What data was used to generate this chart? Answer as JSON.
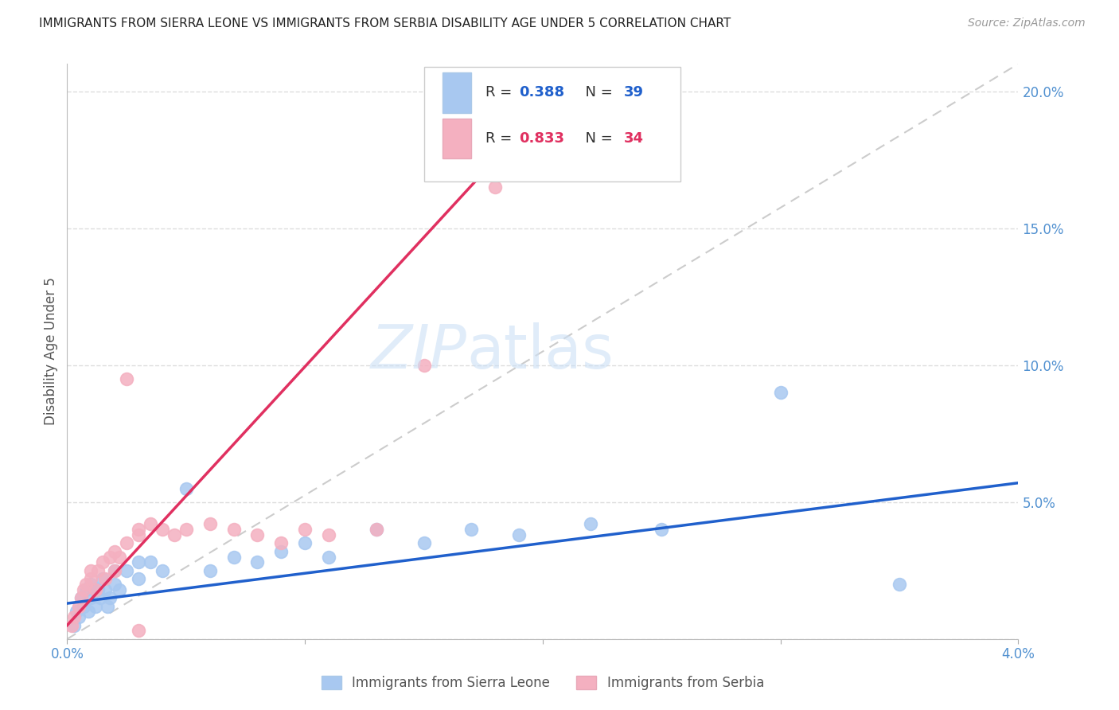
{
  "title": "IMMIGRANTS FROM SIERRA LEONE VS IMMIGRANTS FROM SERBIA DISABILITY AGE UNDER 5 CORRELATION CHART",
  "source": "Source: ZipAtlas.com",
  "ylabel": "Disability Age Under 5",
  "series1_label": "Immigrants from Sierra Leone",
  "series2_label": "Immigrants from Serbia",
  "series1_color": "#a8c8f0",
  "series2_color": "#f4b0c0",
  "trend1_color": "#2060cc",
  "trend2_color": "#e03060",
  "diag_color": "#cccccc",
  "R1": 0.388,
  "N1": 39,
  "R2": 0.833,
  "N2": 34,
  "xmin": 0.0,
  "xmax": 0.04,
  "ymin": 0.0,
  "ymax": 0.21,
  "yticks": [
    0.0,
    0.05,
    0.1,
    0.15,
    0.2
  ],
  "ytick_labels": [
    "",
    "5.0%",
    "10.0%",
    "15.0%",
    "20.0%"
  ],
  "xticks": [
    0.0,
    0.01,
    0.02,
    0.03,
    0.04
  ],
  "xtick_labels": [
    "0.0%",
    "",
    "",
    "",
    "4.0%"
  ],
  "series1_x": [
    0.0003,
    0.0004,
    0.0005,
    0.0006,
    0.0007,
    0.0008,
    0.0009,
    0.001,
    0.001,
    0.0012,
    0.0013,
    0.0014,
    0.0015,
    0.0016,
    0.0017,
    0.0018,
    0.002,
    0.002,
    0.0022,
    0.0025,
    0.003,
    0.003,
    0.0035,
    0.004,
    0.005,
    0.006,
    0.007,
    0.008,
    0.009,
    0.01,
    0.011,
    0.013,
    0.015,
    0.017,
    0.019,
    0.022,
    0.025,
    0.03,
    0.035
  ],
  "series1_y": [
    0.005,
    0.01,
    0.008,
    0.015,
    0.012,
    0.018,
    0.01,
    0.02,
    0.015,
    0.012,
    0.018,
    0.015,
    0.022,
    0.018,
    0.012,
    0.015,
    0.025,
    0.02,
    0.018,
    0.025,
    0.028,
    0.022,
    0.028,
    0.025,
    0.055,
    0.025,
    0.03,
    0.028,
    0.032,
    0.035,
    0.03,
    0.04,
    0.035,
    0.04,
    0.038,
    0.042,
    0.04,
    0.09,
    0.02
  ],
  "series2_x": [
    0.0002,
    0.0003,
    0.0005,
    0.0006,
    0.0007,
    0.0008,
    0.001,
    0.001,
    0.0012,
    0.0013,
    0.0015,
    0.0016,
    0.0018,
    0.002,
    0.002,
    0.0022,
    0.0025,
    0.003,
    0.003,
    0.0035,
    0.004,
    0.0045,
    0.005,
    0.006,
    0.007,
    0.008,
    0.009,
    0.01,
    0.011,
    0.013,
    0.015,
    0.0025,
    0.018,
    0.003
  ],
  "series2_y": [
    0.005,
    0.008,
    0.012,
    0.015,
    0.018,
    0.02,
    0.022,
    0.025,
    0.018,
    0.025,
    0.028,
    0.022,
    0.03,
    0.032,
    0.025,
    0.03,
    0.035,
    0.04,
    0.038,
    0.042,
    0.04,
    0.038,
    0.04,
    0.042,
    0.04,
    0.038,
    0.035,
    0.04,
    0.038,
    0.04,
    0.1,
    0.095,
    0.165,
    0.003
  ],
  "background_color": "#ffffff",
  "grid_color": "#dddddd",
  "title_color": "#222222",
  "tick_color": "#5090d0"
}
